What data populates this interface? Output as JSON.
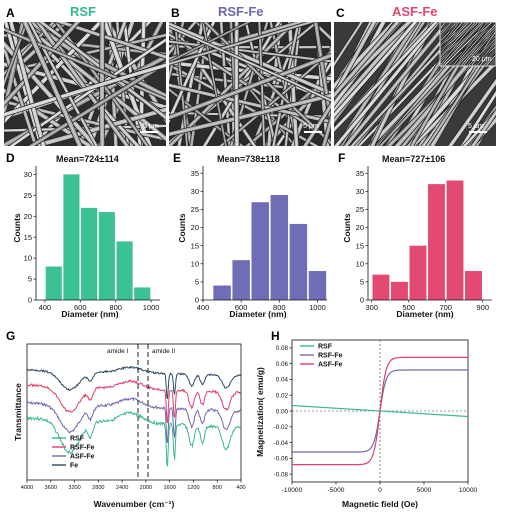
{
  "panels": {
    "A": {
      "letter": "A",
      "title": "RSF",
      "scale": "5 μm",
      "color": "#34b893"
    },
    "B": {
      "letter": "B",
      "title": "RSF-Fe",
      "scale": "5 μm",
      "color": "#6b69b0"
    },
    "C": {
      "letter": "C",
      "title": "ASF-Fe",
      "scale": "5 μm",
      "inset_scale": "20 μm",
      "color": "#e0486e"
    }
  },
  "charts": {
    "D": {
      "letter": "D",
      "type": "bar",
      "title": "Mean=724±114",
      "color": "#3cc096",
      "bins": [
        {
          "x": 450,
          "y": 8
        },
        {
          "x": 550,
          "y": 30
        },
        {
          "x": 650,
          "y": 22
        },
        {
          "x": 750,
          "y": 21
        },
        {
          "x": 850,
          "y": 14
        },
        {
          "x": 950,
          "y": 3
        }
      ],
      "xlim": [
        350,
        1050
      ],
      "ylim": [
        0,
        32
      ],
      "xticks": [
        "400",
        "600",
        "800",
        "1000"
      ],
      "xtick_values": [
        400,
        600,
        800,
        1000
      ],
      "yticks": [
        "0",
        "5",
        "10",
        "15",
        "20",
        "25",
        "30"
      ],
      "ytick_values": [
        0,
        5,
        10,
        15,
        20,
        25,
        30
      ],
      "xlabel": "Diameter (nm)",
      "ylabel": "Counts"
    },
    "E": {
      "letter": "E",
      "type": "bar",
      "title": "Mean=738±118",
      "color": "#6f6db5",
      "bins": [
        {
          "x": 500,
          "y": 4
        },
        {
          "x": 600,
          "y": 11
        },
        {
          "x": 700,
          "y": 27
        },
        {
          "x": 800,
          "y": 29
        },
        {
          "x": 900,
          "y": 21
        },
        {
          "x": 1000,
          "y": 8
        }
      ],
      "xlim": [
        400,
        1050
      ],
      "ylim": [
        0,
        37
      ],
      "xticks": [
        "400",
        "600",
        "800",
        "1000"
      ],
      "xtick_values": [
        400,
        600,
        800,
        1000
      ],
      "yticks": [
        "0",
        "5",
        "10",
        "15",
        "20",
        "25",
        "30",
        "35"
      ],
      "ytick_values": [
        0,
        5,
        10,
        15,
        20,
        25,
        30,
        35
      ],
      "xlabel": "Diameter (nm)",
      "ylabel": "Counts"
    },
    "F": {
      "letter": "F",
      "type": "bar",
      "title": "Mean=727±106",
      "color": "#e24a71",
      "bins": [
        {
          "x": 350,
          "y": 7
        },
        {
          "x": 450,
          "y": 5
        },
        {
          "x": 550,
          "y": 15
        },
        {
          "x": 650,
          "y": 32
        },
        {
          "x": 750,
          "y": 33
        },
        {
          "x": 850,
          "y": 8
        }
      ],
      "xlim": [
        280,
        950
      ],
      "ylim": [
        0,
        37
      ],
      "xticks": [
        "300",
        "500",
        "700",
        "900"
      ],
      "xtick_values": [
        300,
        500,
        700,
        900
      ],
      "yticks": [
        "0",
        "5",
        "10",
        "15",
        "20",
        "25",
        "30",
        "35"
      ],
      "ytick_values": [
        0,
        5,
        10,
        15,
        20,
        25,
        30,
        35
      ],
      "xlabel": "Diameter (nm)",
      "ylabel": "Counts"
    },
    "G": {
      "letter": "G",
      "type": "line",
      "xlabel": "Wavenumber (cm⁻¹)",
      "ylabel": "Transmittance",
      "xticks": [
        "4000",
        "3600",
        "3200",
        "2800",
        "2400",
        "2000",
        "1600",
        "1200",
        "800",
        "400"
      ],
      "xtick_values": [
        4000,
        3600,
        3200,
        2800,
        2400,
        2000,
        1600,
        1200,
        800,
        400
      ],
      "annotations": [
        "amide I",
        "amide II"
      ],
      "series": [
        {
          "name": "RSF",
          "color": "#3cb890"
        },
        {
          "name": "RSF-Fe",
          "color": "#e0406a"
        },
        {
          "name": "ASF-Fe",
          "color": "#6e6aae"
        },
        {
          "name": "Fe",
          "color": "#2e4a66"
        }
      ]
    },
    "H": {
      "letter": "H",
      "type": "line",
      "xlabel": "Magnetic field (Oe)",
      "ylabel": "Magnetization( emu/g)",
      "xticks": [
        "-10000",
        "-5000",
        "0",
        "5000",
        "10000"
      ],
      "xtick_values": [
        -10000,
        -5000,
        0,
        5000,
        10000
      ],
      "yticks": [
        "0.08",
        "0.06",
        "0.04",
        "0.02",
        "0.00",
        "-0.02",
        "-0.04",
        "-0.06",
        "-0.08"
      ],
      "ytick_values": [
        0.08,
        0.06,
        0.04,
        0.02,
        0.0,
        -0.02,
        -0.04,
        -0.06,
        -0.08
      ],
      "xlim": [
        -10000,
        10000
      ],
      "ylim": [
        -0.09,
        0.09
      ],
      "series": [
        {
          "name": "RSF",
          "color": "#3cb890",
          "ms": 0.007
        },
        {
          "name": "RSF-Fe",
          "color": "#6e6aae",
          "ms": 0.052
        },
        {
          "name": "ASF-Fe",
          "color": "#e0406a",
          "ms": 0.068
        }
      ]
    }
  }
}
